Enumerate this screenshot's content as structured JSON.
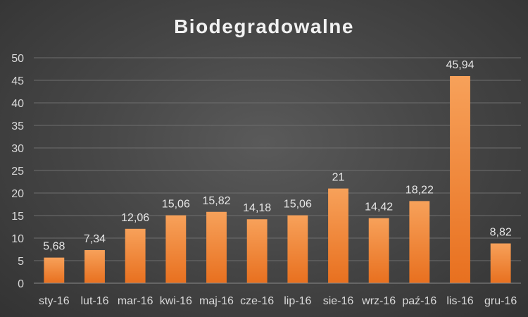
{
  "chart_data": {
    "type": "bar",
    "title": "Biodegradowalne",
    "xlabel": "",
    "ylabel": "",
    "categories": [
      "sty-16",
      "lut-16",
      "mar-16",
      "kwi-16",
      "maj-16",
      "cze-16",
      "lip-16",
      "sie-16",
      "wrz-16",
      "paź-16",
      "lis-16",
      "gru-16"
    ],
    "values": [
      5.68,
      7.34,
      12.06,
      15.06,
      15.82,
      14.18,
      15.06,
      21,
      14.42,
      18.22,
      45.94,
      8.82
    ],
    "value_labels": [
      "5,68",
      "7,34",
      "12,06",
      "15,06",
      "15,82",
      "14,18",
      "15,06",
      "21",
      "14,42",
      "18,22",
      "45,94",
      "8,82"
    ],
    "yticks": [
      0,
      5,
      10,
      15,
      20,
      25,
      30,
      35,
      40,
      45,
      50
    ],
    "ylim": [
      0,
      50
    ],
    "grid": true,
    "legend": "none",
    "colors": {
      "bar_top": "#f7a15a",
      "bar_bottom": "#e8701f",
      "background": "#404040"
    }
  }
}
